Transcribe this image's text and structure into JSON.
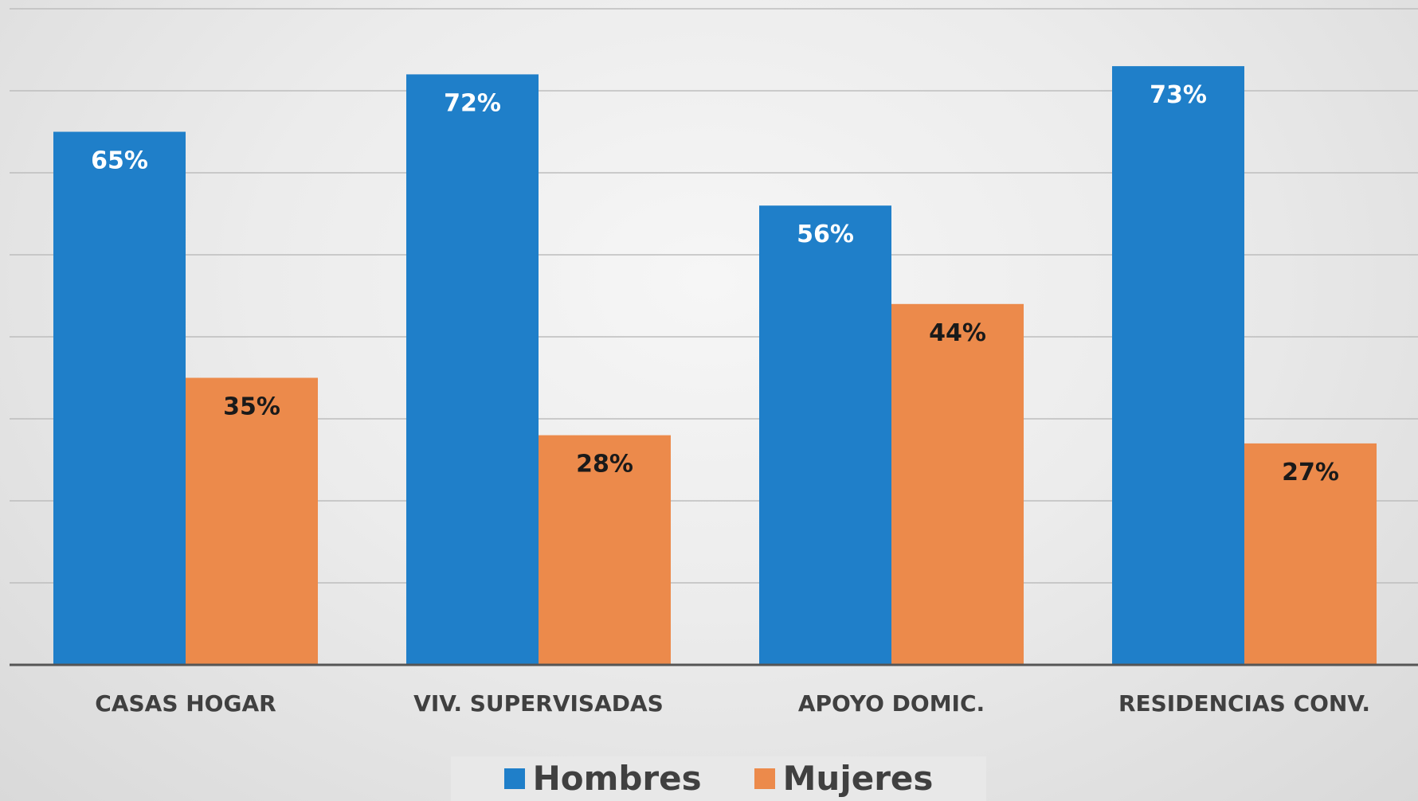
{
  "chart_data": {
    "type": "bar",
    "title": "",
    "xlabel": "",
    "ylabel": "",
    "ylim": [
      0,
      80
    ],
    "grid": true,
    "legend_position": "bottom",
    "categories": [
      "CASAS HOGAR",
      "VIV. SUPERVISADAS",
      "APOYO DOMIC.",
      "RESIDENCIAS CONV."
    ],
    "series": [
      {
        "name": "Hombres",
        "color": "#1f7fc9",
        "values": [
          65,
          72,
          56,
          73
        ],
        "labels": [
          "65%",
          "72%",
          "56%",
          "73%"
        ]
      },
      {
        "name": "Mujeres",
        "color": "#ec8a4b",
        "values": [
          35,
          28,
          44,
          27
        ],
        "labels": [
          "35%",
          "28%",
          "44%",
          "27%"
        ]
      }
    ]
  }
}
